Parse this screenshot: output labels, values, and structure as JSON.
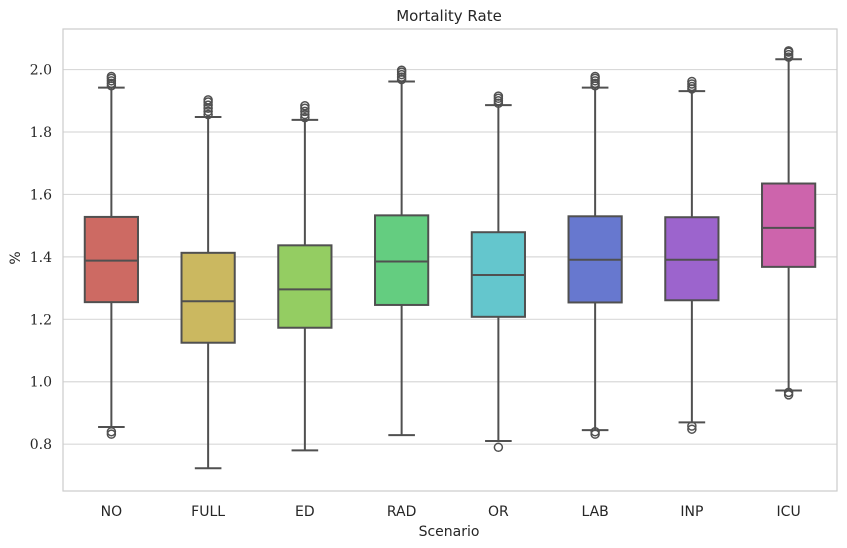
{
  "chart_data": {
    "type": "box",
    "title": "Mortality Rate",
    "xlabel": "Scenario",
    "ylabel": "%",
    "ylim": [
      0.65,
      2.13
    ],
    "yticks": [
      "0.8",
      "1.0",
      "1.2",
      "1.4",
      "1.6",
      "1.8",
      "2.0"
    ],
    "grid": "horizontal",
    "series": [
      {
        "category": "NO",
        "color": "#cd6a63",
        "whisker_low": 0.855,
        "q1": 1.255,
        "median": 1.388,
        "q3": 1.528,
        "whisker_high": 1.942,
        "outliers_low": [
          0.832,
          0.84
        ],
        "outliers_high": [
          1.948,
          1.956,
          1.964,
          1.972,
          1.978
        ]
      },
      {
        "category": "FULL",
        "color": "#cbb860",
        "whisker_low": 0.723,
        "q1": 1.125,
        "median": 1.258,
        "q3": 1.413,
        "whisker_high": 1.848,
        "outliers_low": [],
        "outliers_high": [
          1.856,
          1.866,
          1.876,
          1.886,
          1.896,
          1.903
        ]
      },
      {
        "category": "ED",
        "color": "#94cd62",
        "whisker_low": 0.78,
        "q1": 1.173,
        "median": 1.296,
        "q3": 1.437,
        "whisker_high": 1.839,
        "outliers_low": [],
        "outliers_high": [
          1.846,
          1.856,
          1.866,
          1.876,
          1.884
        ]
      },
      {
        "category": "RAD",
        "color": "#64cd80",
        "whisker_low": 0.829,
        "q1": 1.246,
        "median": 1.385,
        "q3": 1.533,
        "whisker_high": 1.962,
        "outliers_low": [],
        "outliers_high": [
          1.968,
          1.976,
          1.984,
          1.992,
          1.998
        ]
      },
      {
        "category": "OR",
        "color": "#64c6cd",
        "whisker_low": 0.81,
        "q1": 1.208,
        "median": 1.342,
        "q3": 1.479,
        "whisker_high": 1.886,
        "outliers_low": [
          0.79
        ],
        "outliers_high": [
          1.892,
          1.9,
          1.908,
          1.915
        ]
      },
      {
        "category": "LAB",
        "color": "#6778cf",
        "whisker_low": 0.845,
        "q1": 1.254,
        "median": 1.391,
        "q3": 1.53,
        "whisker_high": 1.942,
        "outliers_low": [
          0.832,
          0.84
        ],
        "outliers_high": [
          1.948,
          1.956,
          1.964,
          1.972,
          1.978
        ]
      },
      {
        "category": "INP",
        "color": "#9c64cd",
        "whisker_low": 0.87,
        "q1": 1.261,
        "median": 1.391,
        "q3": 1.527,
        "whisker_high": 1.931,
        "outliers_low": [
          0.848,
          0.858
        ],
        "outliers_high": [
          1.938,
          1.946,
          1.954,
          1.962
        ]
      },
      {
        "category": "ICU",
        "color": "#cd64ac",
        "whisker_low": 0.972,
        "q1": 1.368,
        "median": 1.493,
        "q3": 1.635,
        "whisker_high": 2.033,
        "outliers_low": [
          0.958,
          0.966
        ],
        "outliers_high": [
          2.04,
          2.048,
          2.056,
          2.06
        ]
      }
    ]
  }
}
